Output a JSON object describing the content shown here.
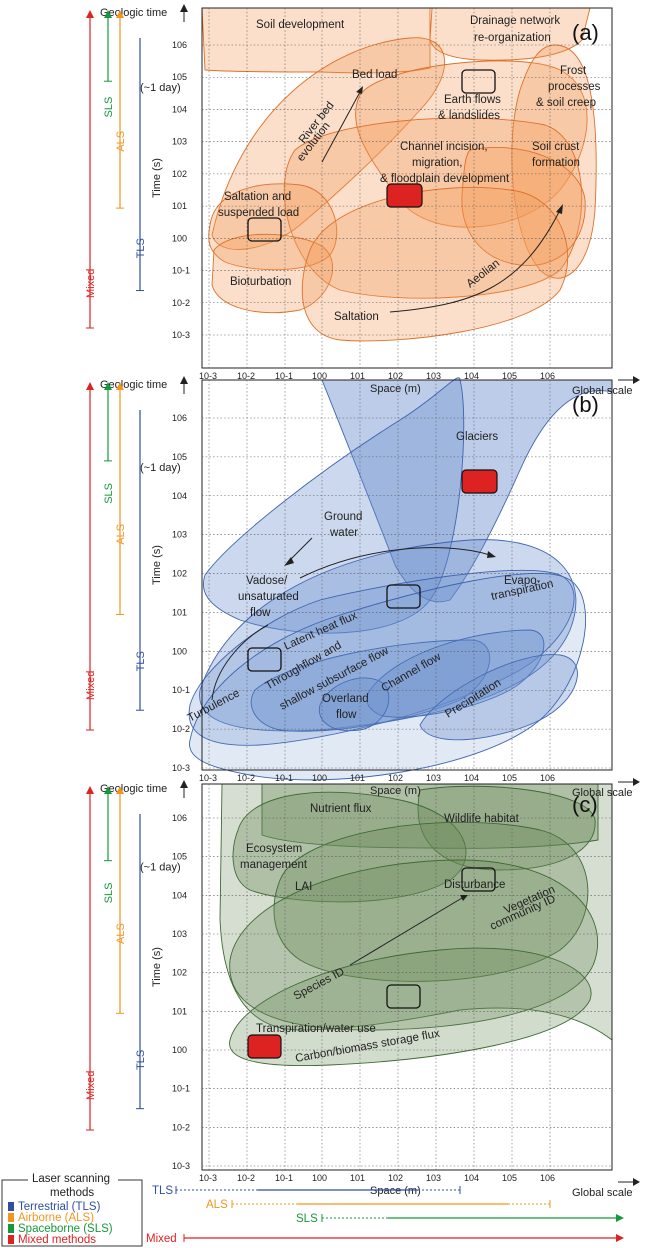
{
  "axes": {
    "y_top_label": "Geologic time",
    "y_label": "Time (s)",
    "x_label": "Space (m)",
    "x_right_label": "Global scale",
    "day_label": "(~1 day)",
    "x_ticks": [
      "10-3",
      "10-2",
      "10-1",
      "100",
      "101",
      "102",
      "103",
      "104",
      "105",
      "106"
    ],
    "y_ticks": [
      "10-3",
      "10-2",
      "10-1",
      "100",
      "101",
      "102",
      "103",
      "104",
      "105",
      "106"
    ]
  },
  "side_methods": [
    "TLS",
    "ALS",
    "SLS",
    "Mixed"
  ],
  "method_colors": {
    "TLS": "#2f4fa0",
    "ALS": "#f0961e",
    "SLS": "#16993a",
    "Mixed": "#dd2222"
  },
  "panels": [
    {
      "id": "(a)",
      "labels": [
        {
          "text": "Soil development"
        },
        {
          "text": "Drainage network"
        },
        {
          "text": "re-organization"
        },
        {
          "text": "Bed load"
        },
        {
          "text": "River bed"
        },
        {
          "text": "evolution"
        },
        {
          "text": "Earth flows"
        },
        {
          "text": "& landslides"
        },
        {
          "text": "Frost"
        },
        {
          "text": "processes"
        },
        {
          "text": "& soil creep"
        },
        {
          "text": "Channel incision,"
        },
        {
          "text": "migration,"
        },
        {
          "text": "& floodplain development"
        },
        {
          "text": "Soil crust"
        },
        {
          "text": "formation"
        },
        {
          "text": "Saltation and"
        },
        {
          "text": "suspended load"
        },
        {
          "text": "Bioturbation"
        },
        {
          "text": "Aeolian"
        },
        {
          "text": "Saltation"
        }
      ]
    },
    {
      "id": "(b)",
      "labels": [
        {
          "text": "Glaciers"
        },
        {
          "text": "Ground"
        },
        {
          "text": "water"
        },
        {
          "text": "Vadose/"
        },
        {
          "text": "unsaturated"
        },
        {
          "text": "flow"
        },
        {
          "text": "Latent heat flux"
        },
        {
          "text": "Evapo-"
        },
        {
          "text": "transpiration"
        },
        {
          "text": "Throughflow and"
        },
        {
          "text": "shallow subsurface flow"
        },
        {
          "text": "Channel flow"
        },
        {
          "text": "Overland"
        },
        {
          "text": "flow"
        },
        {
          "text": "Precipitation"
        },
        {
          "text": "Turbulence"
        }
      ]
    },
    {
      "id": "(c)",
      "labels": [
        {
          "text": "Nutrient flux"
        },
        {
          "text": "Wildlife habitat"
        },
        {
          "text": "Ecosystem"
        },
        {
          "text": "management"
        },
        {
          "text": "LAI"
        },
        {
          "text": "Disturbance"
        },
        {
          "text": "Vegetation"
        },
        {
          "text": "community ID"
        },
        {
          "text": "Species ID"
        },
        {
          "text": "Transpiration/water use"
        },
        {
          "text": "Carbon/biomass storage flux"
        }
      ]
    }
  ],
  "legend": {
    "title_line1": "Laser scanning",
    "title_line2": "methods",
    "items": [
      {
        "label": "Terrestrial (TLS)",
        "color": "#2f4fa0"
      },
      {
        "label": "Airborne (ALS)",
        "color": "#f0961e"
      },
      {
        "label": "Spaceborne (SLS)",
        "color": "#16993a"
      },
      {
        "label": "Mixed methods",
        "color": "#dd2222"
      }
    ]
  }
}
